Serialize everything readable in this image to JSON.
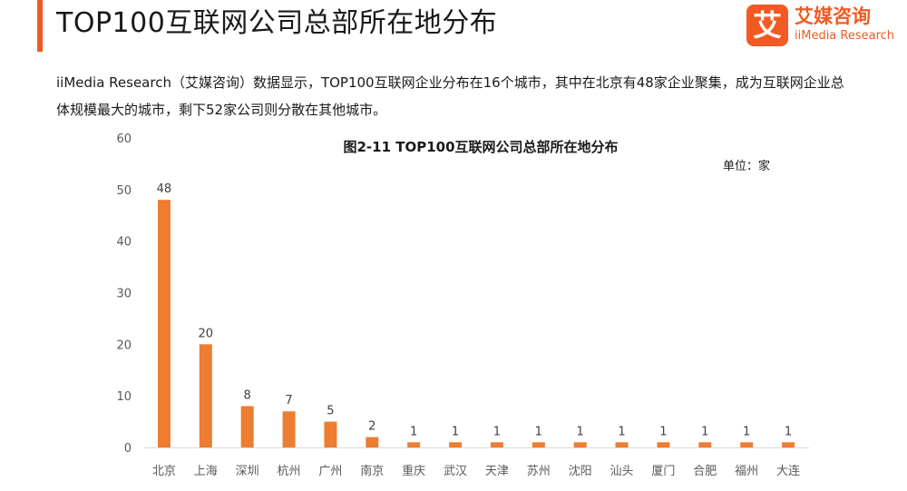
{
  "header": {
    "title": "TOP100互联网公司总部所在地分布",
    "accent_color": "#f15a22"
  },
  "logo": {
    "mark": "艾",
    "name_cn": "艾媒咨询",
    "name_en": "iiMedia Research",
    "color": "#f15a22"
  },
  "intro": {
    "text": "iiMedia Research（艾媒咨询）数据显示，TOP100互联网企业分布在16个城市，其中在北京有48家企业聚集，成为互联网企业总体规模最大的城市，剩下52家公司则分散在其他城市。"
  },
  "chart_data": {
    "type": "bar",
    "title": "图2-11 TOP100互联网公司总部所在地分布",
    "unit": "单位：家",
    "categories": [
      "北京",
      "上海",
      "深圳",
      "杭州",
      "广州",
      "南京",
      "重庆",
      "武汉",
      "天津",
      "苏州",
      "沈阳",
      "汕头",
      "厦门",
      "合肥",
      "福州",
      "大连"
    ],
    "values": [
      48,
      20,
      8,
      7,
      5,
      2,
      1,
      1,
      1,
      1,
      1,
      1,
      1,
      1,
      1,
      1
    ],
    "ylim": [
      0,
      60
    ],
    "yticks": [
      0,
      10,
      20,
      30,
      40,
      50,
      60
    ],
    "grid": false,
    "legend": "none",
    "bar_color": "#ed7d31"
  }
}
